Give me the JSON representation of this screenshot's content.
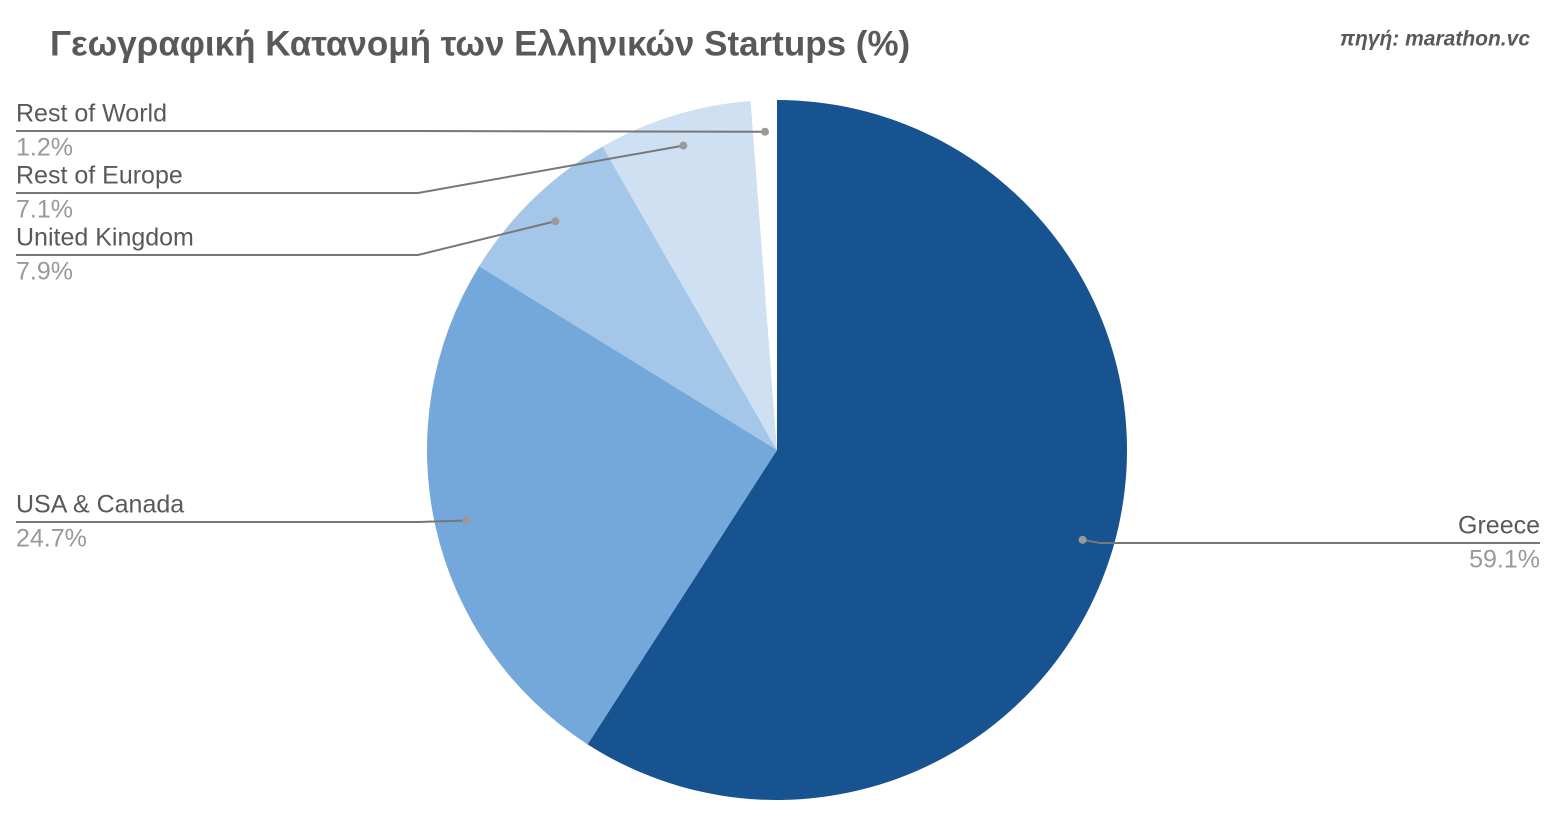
{
  "chart_data": {
    "type": "pie",
    "title": "Γεωγραφική Κατανομή των Ελληνικών Startups (%)",
    "source": "πηγή: marathon.vc",
    "categories": [
      "Greece",
      "USA & Canada",
      "United Kingdom",
      "Rest of Europe",
      "Rest of World"
    ],
    "values": [
      59.1,
      24.7,
      7.9,
      7.1,
      1.2
    ],
    "value_labels": [
      "59.1%",
      "24.7%",
      "7.9%",
      "7.1%",
      "1.2%"
    ],
    "colors": [
      "#175291",
      "#74a7da",
      "#a4c6e8",
      "#cfe0f2",
      "#ffffff"
    ]
  }
}
